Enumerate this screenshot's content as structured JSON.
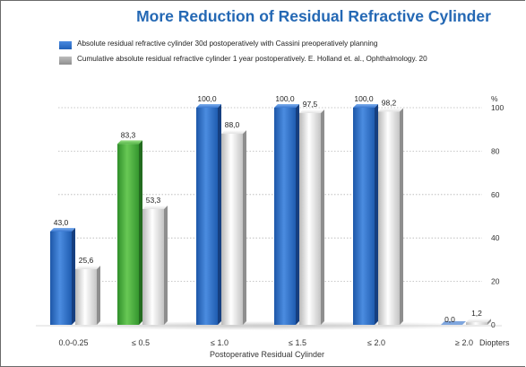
{
  "chart_data": {
    "type": "bar",
    "title": "More Reduction of Residual Refractive Cylinder",
    "xlabel": "Postoperative Residual Cylinder",
    "x_unit_label": "Diopters",
    "y_unit_label": "%",
    "ylim": [
      0,
      100
    ],
    "yticks": [
      "0",
      "20",
      "40",
      "60",
      "80",
      "100"
    ],
    "grid": true,
    "legend_position": "top-left",
    "categories": [
      "0.0-0.25",
      "≤ 0.5",
      "≤ 1.0",
      "≤ 1.5",
      "≤ 2.0",
      "≥ 2.0"
    ],
    "series": [
      {
        "name": "Absolute residual refractive cylinder 30d postoperatively with Cassini preoperatively planning",
        "color": "#2e6fc8",
        "highlight_color": "#4bb33d",
        "highlight_index": 1,
        "values": [
          43.0,
          83.3,
          100.0,
          100.0,
          100.0,
          0.0
        ],
        "labels": [
          "43,0",
          "83,3",
          "100,0",
          "100,0",
          "100,0",
          "0,0"
        ]
      },
      {
        "name": "Cumulative absolute residual refractive cylinder 1 year postoperatively. E. Holland et. al., Ophthalmology. 20",
        "color": "#d9d9d9",
        "values": [
          25.6,
          53.3,
          88.0,
          97.5,
          98.2,
          1.2
        ],
        "labels": [
          "25,6",
          "53,3",
          "88,0",
          "97,5",
          "98,2",
          "1,2"
        ]
      }
    ]
  }
}
